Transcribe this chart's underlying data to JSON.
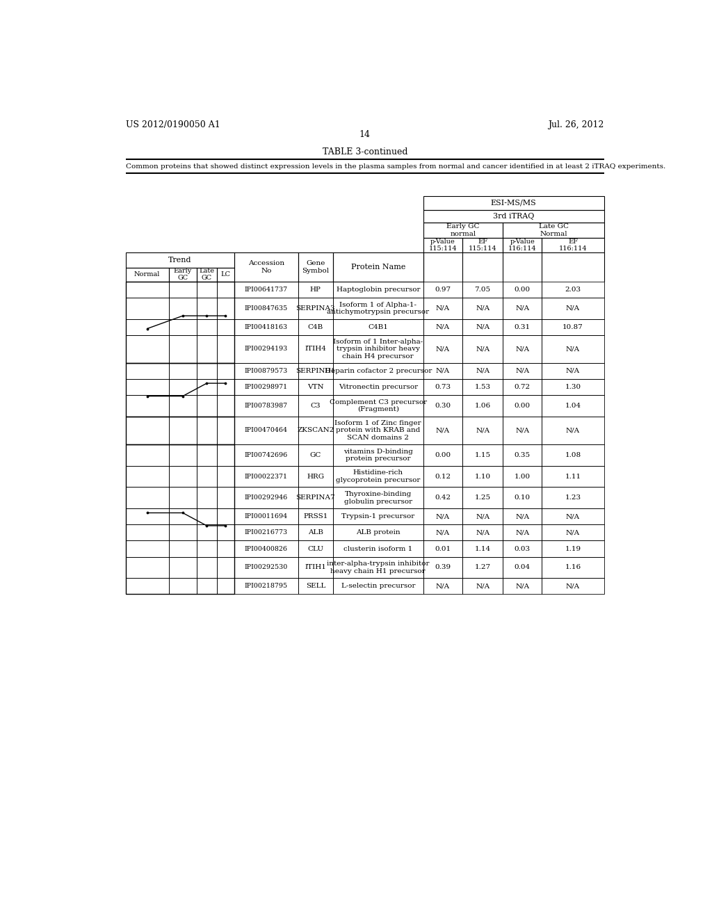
{
  "page_left": "US 2012/0190050 A1",
  "page_right": "Jul. 26, 2012",
  "page_number": "14",
  "table_title": "TABLE 3-continued",
  "table_caption": "Common proteins that showed distinct expression levels in the plasma samples from normal and cancer identified in at least 2 iTRAQ experiments.",
  "rows": [
    {
      "trend_group": 1,
      "accession": "IPI00641737",
      "gene": "HP",
      "protein": "Haptoglobin precursor",
      "v1": "0.97",
      "v2": "7.05",
      "v3": "0.00",
      "v4": "2.03"
    },
    {
      "trend_group": 1,
      "accession": "IPI00847635",
      "gene": "SERPINA3",
      "protein": "Isoform 1 of Alpha-1-\nantichymotrypsin precursor",
      "v1": "N/A",
      "v2": "N/A",
      "v3": "N/A",
      "v4": "N/A"
    },
    {
      "trend_group": 1,
      "accession": "IPI00418163",
      "gene": "C4B",
      "protein": "C4B1",
      "v1": "N/A",
      "v2": "N/A",
      "v3": "0.31",
      "v4": "10.87"
    },
    {
      "trend_group": 1,
      "accession": "IPI00294193",
      "gene": "ITIH4",
      "protein": "Isoform of 1 Inter-alpha-\ntrypsin inhibitor heavy\nchain H4 precursor",
      "v1": "N/A",
      "v2": "N/A",
      "v3": "N/A",
      "v4": "N/A"
    },
    {
      "trend_group": 2,
      "accession": "IPI00879573",
      "gene": "SERPIND1",
      "protein": "Heparin cofactor 2 precursor",
      "v1": "N/A",
      "v2": "N/A",
      "v3": "N/A",
      "v4": "N/A"
    },
    {
      "trend_group": 2,
      "accession": "IPI00298971",
      "gene": "VTN",
      "protein": "Vitronectin precursor",
      "v1": "0.73",
      "v2": "1.53",
      "v3": "0.72",
      "v4": "1.30"
    },
    {
      "trend_group": 2,
      "accession": "IPI00783987",
      "gene": "C3",
      "protein": "Complement C3 precursor\n(Fragment)",
      "v1": "0.30",
      "v2": "1.06",
      "v3": "0.00",
      "v4": "1.04"
    },
    {
      "trend_group": 3,
      "accession": "IPI00470464",
      "gene": "ZKSCAN2",
      "protein": "Isoform 1 of Zinc finger\nprotein with KRAB and\nSCAN domains 2",
      "v1": "N/A",
      "v2": "N/A",
      "v3": "N/A",
      "v4": "N/A"
    },
    {
      "trend_group": 4,
      "accession": "IPI00742696",
      "gene": "GC",
      "protein": "vitamins D-binding\nprotein precursor",
      "v1": "0.00",
      "v2": "1.15",
      "v3": "0.35",
      "v4": "1.08"
    },
    {
      "trend_group": 4,
      "accession": "IPI00022371",
      "gene": "HRG",
      "protein": "Histidine-rich\nglycoprotein precursor",
      "v1": "0.12",
      "v2": "1.10",
      "v3": "1.00",
      "v4": "1.11"
    },
    {
      "trend_group": 4,
      "accession": "IPI00292946",
      "gene": "SERPINA7",
      "protein": "Thyroxine-binding\nglobulin precursor",
      "v1": "0.42",
      "v2": "1.25",
      "v3": "0.10",
      "v4": "1.23"
    },
    {
      "trend_group": 4,
      "accession": "IPI00011694",
      "gene": "PRSS1",
      "protein": "Trypsin-1 precursor",
      "v1": "N/A",
      "v2": "N/A",
      "v3": "N/A",
      "v4": "N/A"
    },
    {
      "trend_group": 4,
      "accession": "IPI00216773",
      "gene": "ALB",
      "protein": "ALB protein",
      "v1": "N/A",
      "v2": "N/A",
      "v3": "N/A",
      "v4": "N/A"
    },
    {
      "trend_group": 4,
      "accession": "IPI00400826",
      "gene": "CLU",
      "protein": "clusterin isoform 1",
      "v1": "0.01",
      "v2": "1.14",
      "v3": "0.03",
      "v4": "1.19"
    },
    {
      "trend_group": 4,
      "accession": "IPI00292530",
      "gene": "ITIH1",
      "protein": "inter-alpha-trypsin inhibitor\nheavy chain H1 precursor",
      "v1": "0.39",
      "v2": "1.27",
      "v3": "0.04",
      "v4": "1.16"
    },
    {
      "trend_group": 4,
      "accession": "IPI00218795",
      "gene": "SELL",
      "protein": "L-selectin precursor",
      "v1": "N/A",
      "v2": "N/A",
      "v3": "N/A",
      "v4": "N/A"
    }
  ]
}
